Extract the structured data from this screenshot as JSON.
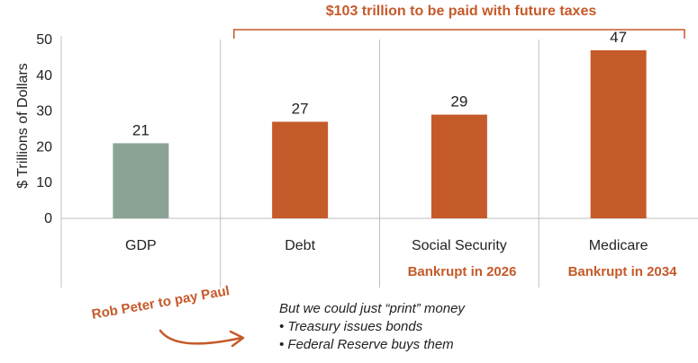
{
  "chart_data": {
    "type": "bar",
    "categories": [
      "GDP",
      "Debt",
      "Social Security",
      "Medicare"
    ],
    "values": [
      21,
      27,
      29,
      47
    ],
    "value_labels": [
      "21",
      "27",
      "29",
      "47"
    ],
    "bar_colors": [
      "#8aa395",
      "#c55a2a",
      "#c55a2a",
      "#c55a2a"
    ],
    "ylabel": "$ Trillions of Dollars",
    "ylim": [
      0,
      50
    ],
    "yticks": [
      "0",
      "10",
      "20",
      "30",
      "40",
      "50"
    ],
    "grid": false,
    "annotations": {
      "bracket_label": "$103 trillion to be paid with future taxes",
      "social_security_note": "Bankrupt in 2026",
      "medicare_note": "Bankrupt in 2034"
    }
  },
  "side_note": {
    "arrow_label": "Rob Peter to pay Paul",
    "lines": [
      "But we could just “print” money",
      "• Treasury issues bonds",
      "• Federal Reserve buys them"
    ]
  },
  "colors": {
    "accent": "#c55a2a",
    "gdp": "#8aa395",
    "axis": "#bfbfbf"
  }
}
